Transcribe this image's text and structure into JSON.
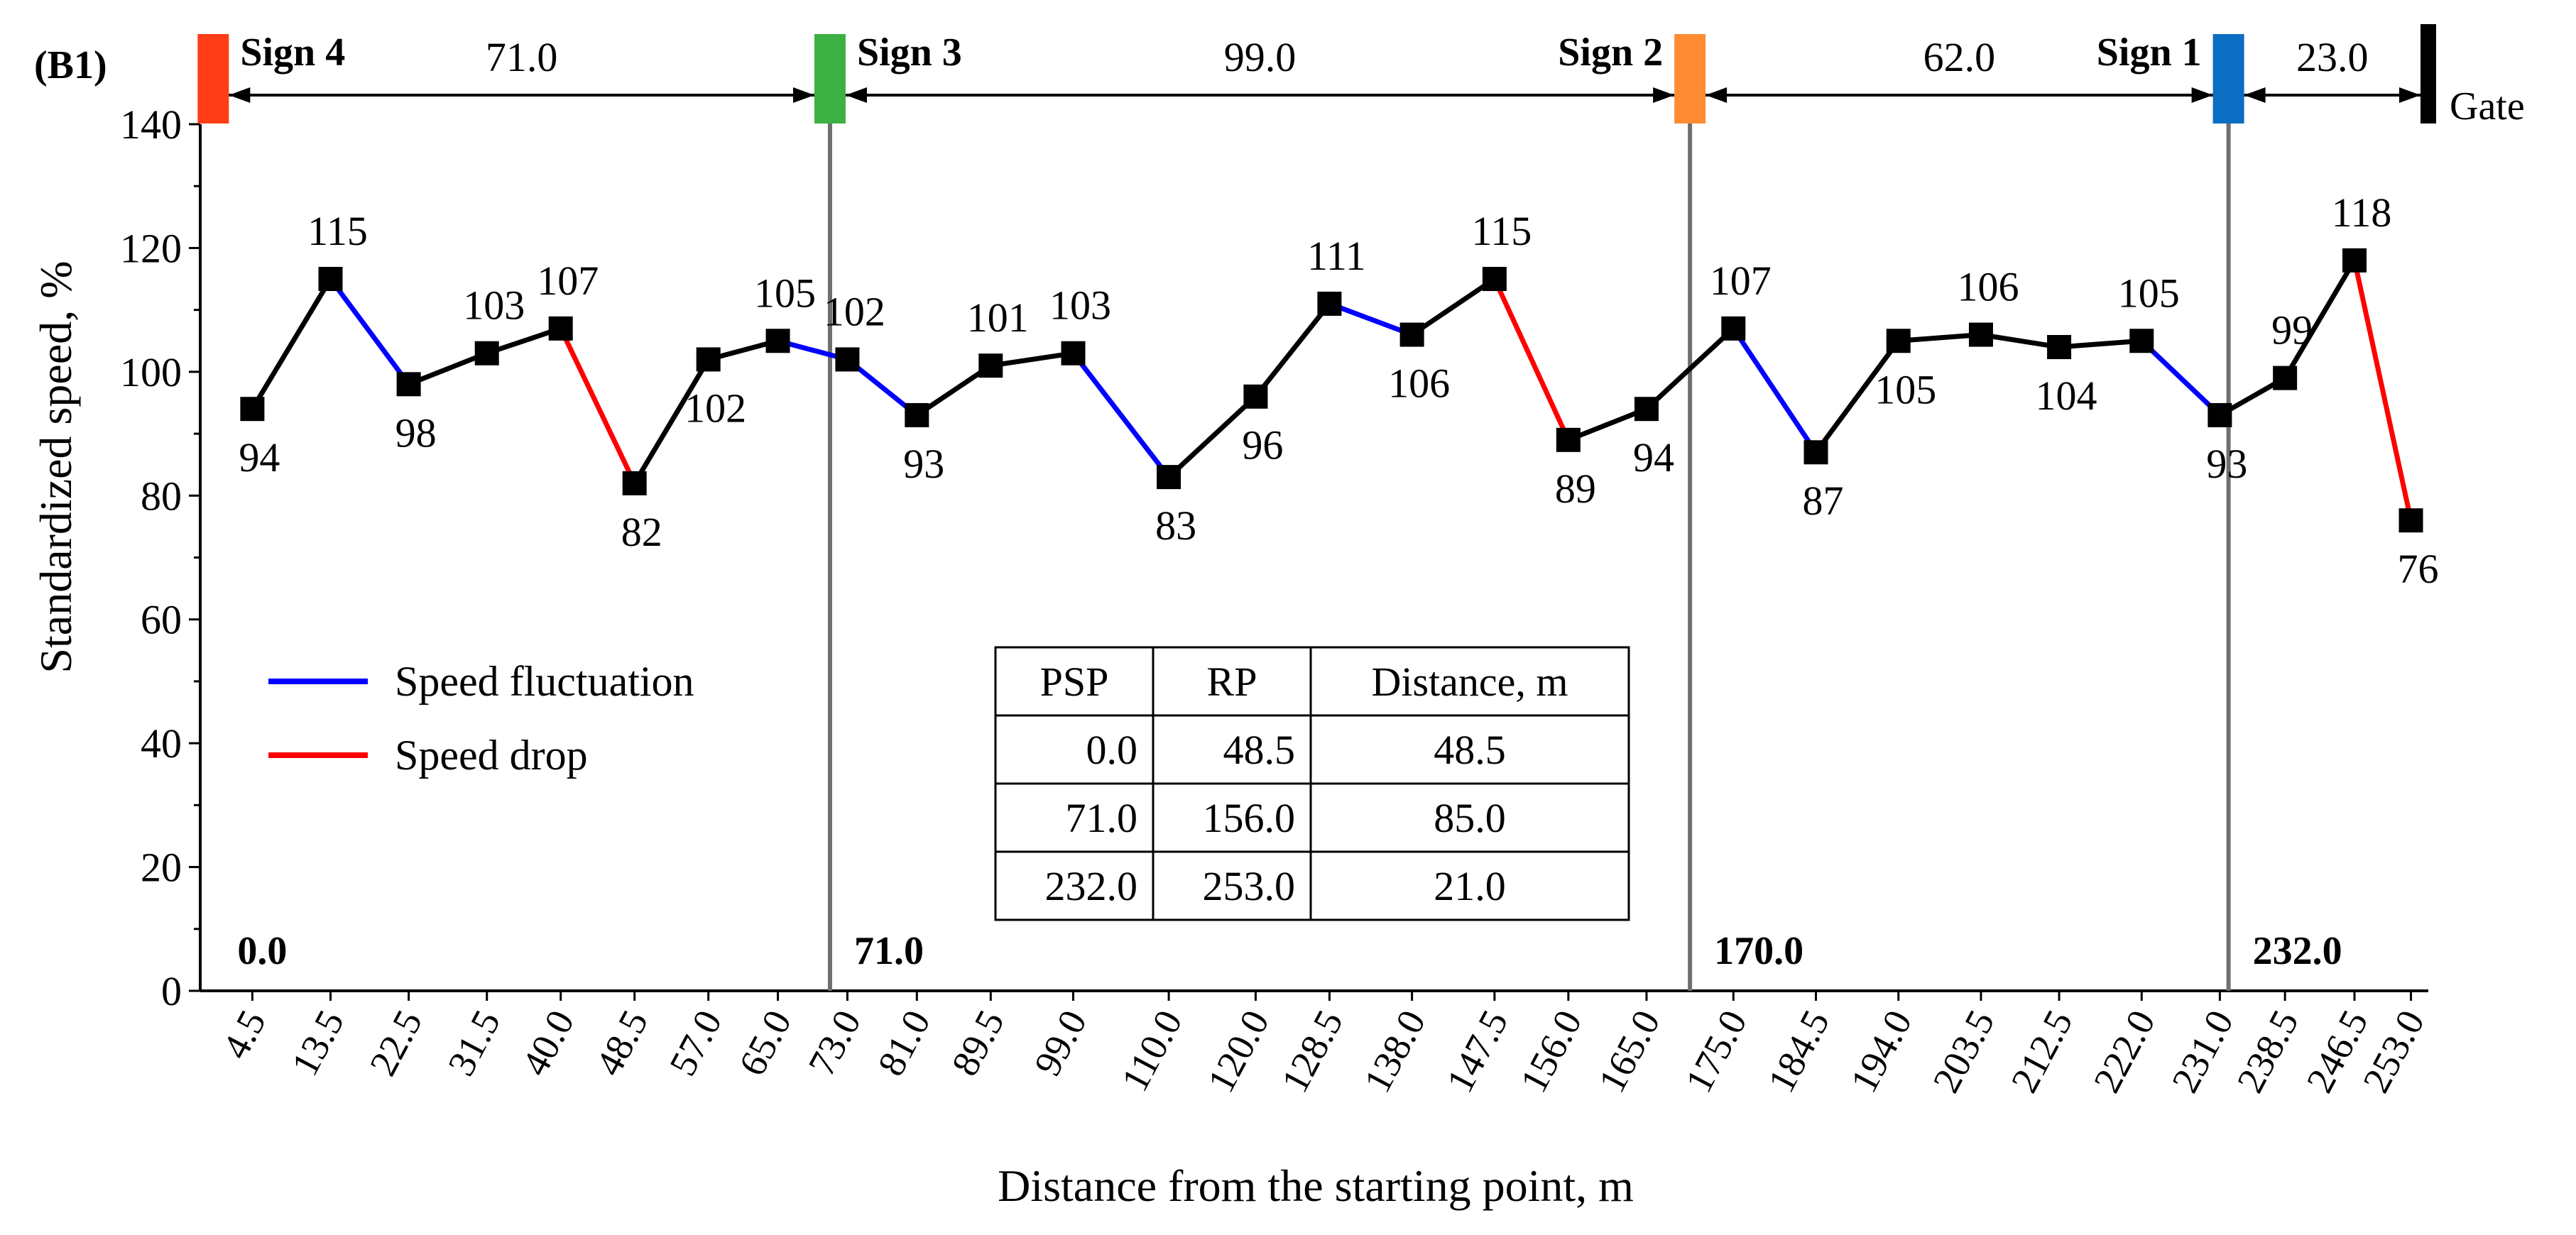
{
  "chart_data": {
    "type": "line",
    "panel_label": "(B1)",
    "xlabel": "Distance from the starting point, m",
    "ylabel": "Standardized speed, %",
    "ylim": [
      0,
      140
    ],
    "yticks": [
      "0",
      "20",
      "40",
      "60",
      "80",
      "100",
      "120",
      "140"
    ],
    "x_categories": [
      "4.5",
      "13.5",
      "22.5",
      "31.5",
      "40.0",
      "48.5",
      "57.0",
      "65.0",
      "73.0",
      "81.0",
      "89.5",
      "99.0",
      "110.0",
      "120.0",
      "128.5",
      "138.0",
      "147.5",
      "156.0",
      "165.0",
      "175.0",
      "184.5",
      "194.0",
      "203.5",
      "212.5",
      "222.0",
      "231.0",
      "238.5",
      "246.5",
      "253.0"
    ],
    "x_values": [
      4.5,
      13.5,
      22.5,
      31.5,
      40.0,
      48.5,
      57.0,
      65.0,
      73.0,
      81.0,
      89.5,
      99.0,
      110.0,
      120.0,
      128.5,
      138.0,
      147.5,
      156.0,
      165.0,
      175.0,
      184.5,
      194.0,
      203.5,
      212.5,
      222.0,
      231.0,
      238.5,
      246.5,
      253.0
    ],
    "values": [
      94,
      115,
      98,
      103,
      107,
      82,
      102,
      105,
      102,
      93,
      101,
      103,
      83,
      96,
      111,
      106,
      115,
      89,
      94,
      107,
      87,
      105,
      106,
      104,
      105,
      93,
      99,
      118,
      76
    ],
    "value_labels": [
      "94",
      "115",
      "98",
      "103",
      "107",
      "82",
      "102",
      "105",
      "102",
      "93",
      "101",
      "103",
      "83",
      "96",
      "111",
      "106",
      "115",
      "89",
      "94",
      "107",
      "87",
      "105",
      "106",
      "104",
      "105",
      "93",
      "99",
      "118",
      "76"
    ],
    "label_position": [
      "below",
      "above",
      "below",
      "above",
      "above",
      "below",
      "below",
      "above",
      "above",
      "below",
      "above",
      "above",
      "below",
      "below",
      "above",
      "below",
      "above",
      "below",
      "below",
      "above",
      "below",
      "below",
      "above",
      "below",
      "above",
      "below",
      "above",
      "above",
      "below"
    ],
    "segment_types": [
      "black",
      "blue",
      "black",
      "black",
      "red",
      "black",
      "black",
      "blue",
      "blue",
      "black",
      "black",
      "blue",
      "black",
      "black",
      "blue",
      "black",
      "red",
      "black",
      "black",
      "blue",
      "black",
      "black",
      "black",
      "black",
      "blue",
      "black",
      "black",
      "red"
    ],
    "legend": [
      {
        "label": "Speed fluctuation",
        "color": "#0000ff"
      },
      {
        "label": "Speed drop",
        "color": "#ff0000"
      }
    ],
    "signs": [
      {
        "name": "Sign 4",
        "position_m": 0.0,
        "color": "#ff3d17",
        "label": "0.0"
      },
      {
        "name": "Sign 3",
        "position_m": 71.0,
        "color": "#3cb043",
        "label": "71.0"
      },
      {
        "name": "Sign 2",
        "position_m": 170.0,
        "color": "#ff8c33",
        "label": "170.0"
      },
      {
        "name": "Sign 1",
        "position_m": 232.0,
        "color": "#0b6ec2",
        "label": "232.0"
      }
    ],
    "gate": {
      "name": "Gate",
      "position_m": 255.0
    },
    "spans": [
      {
        "from_m": 0.0,
        "to_m": 71.0,
        "label": "71.0"
      },
      {
        "from_m": 71.0,
        "to_m": 170.0,
        "label": "99.0"
      },
      {
        "from_m": 170.0,
        "to_m": 232.0,
        "label": "62.0"
      },
      {
        "from_m": 232.0,
        "to_m": 255.0,
        "label": "23.0"
      }
    ],
    "table": {
      "headers": [
        "PSP",
        "RP",
        "Distance, m"
      ],
      "rows": [
        [
          "0.0",
          "48.5",
          "48.5"
        ],
        [
          "71.0",
          "156.0",
          "85.0"
        ],
        [
          "232.0",
          "253.0",
          "21.0"
        ]
      ]
    }
  }
}
